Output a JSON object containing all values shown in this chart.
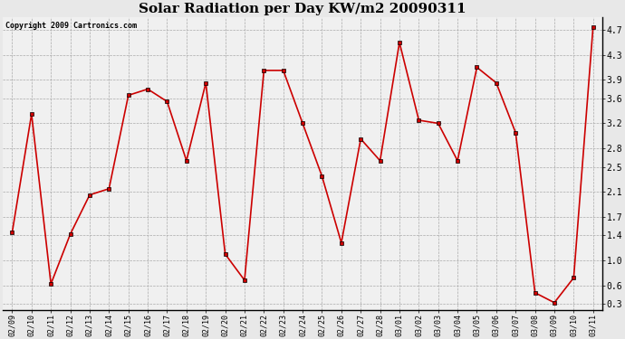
{
  "title": "Solar Radiation per Day KW/m2 20090311",
  "copyright": "Copyright 2009 Cartronics.com",
  "dates": [
    "02/09",
    "02/10",
    "02/11",
    "02/12",
    "02/13",
    "02/14",
    "02/15",
    "02/16",
    "02/17",
    "02/18",
    "02/19",
    "02/20",
    "02/21",
    "02/22",
    "02/23",
    "02/24",
    "02/25",
    "02/26",
    "02/27",
    "02/28",
    "03/01",
    "03/02",
    "03/03",
    "03/04",
    "03/05",
    "03/06",
    "03/07",
    "03/08",
    "03/09",
    "03/10",
    "03/11"
  ],
  "values": [
    1.45,
    3.35,
    0.62,
    1.42,
    2.05,
    2.15,
    3.65,
    3.75,
    3.55,
    2.6,
    3.85,
    1.1,
    0.68,
    4.05,
    4.05,
    3.2,
    2.35,
    1.28,
    2.95,
    2.6,
    4.5,
    3.25,
    3.2,
    2.6,
    4.1,
    3.85,
    3.05,
    0.48,
    0.32,
    0.72,
    4.75
  ],
  "line_color": "#cc0000",
  "marker_color": "#000000",
  "bg_color": "#e8e8e8",
  "plot_bg_color": "#f0f0f0",
  "grid_color": "#aaaaaa",
  "ylim": [
    0.2,
    4.9
  ],
  "yticks": [
    0.3,
    0.6,
    1.0,
    1.4,
    1.7,
    2.1,
    2.5,
    2.8,
    3.2,
    3.6,
    3.9,
    4.3,
    4.7
  ],
  "title_fontsize": 11,
  "copyright_fontsize": 6,
  "tick_fontsize": 6,
  "figwidth": 6.9,
  "figheight": 3.75,
  "dpi": 100
}
